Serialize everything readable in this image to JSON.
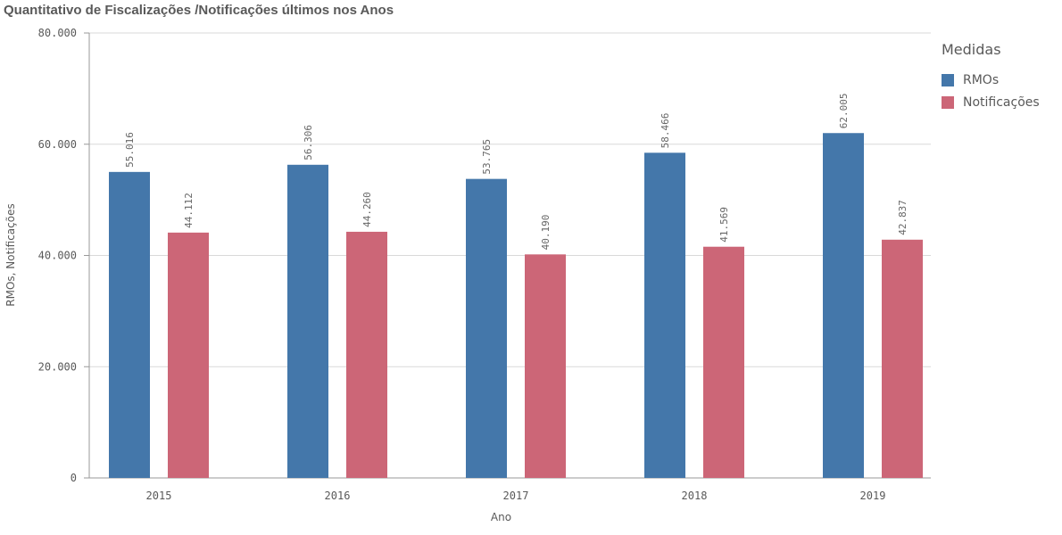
{
  "title": "Quantitativo de Fiscalizações /Notificações últimos nos Anos",
  "chart_data": {
    "type": "bar",
    "title": "Quantitativo de Fiscalizações /Notificações últimos nos Anos",
    "xlabel": "Ano",
    "ylabel": "RMOs, Notificações",
    "ylim": [
      0,
      80000
    ],
    "yticks": [
      "0",
      "20.000",
      "40.000",
      "60.000",
      "80.000"
    ],
    "categories": [
      "2015",
      "2016",
      "2017",
      "2018",
      "2019"
    ],
    "series": [
      {
        "name": "RMOs",
        "color": "#4477aa",
        "values": [
          55016,
          56306,
          53765,
          58466,
          62005
        ],
        "labels": [
          "55.016",
          "56.306",
          "53.765",
          "58.466",
          "62.005"
        ]
      },
      {
        "name": "Notificações",
        "color": "#cc6677",
        "values": [
          44112,
          44260,
          40190,
          41569,
          42837
        ],
        "labels": [
          "44.112",
          "44.260",
          "40.190",
          "41.569",
          "42.837"
        ]
      }
    ],
    "grid": true,
    "legend": {
      "title": "Medidas",
      "position": "right"
    }
  }
}
